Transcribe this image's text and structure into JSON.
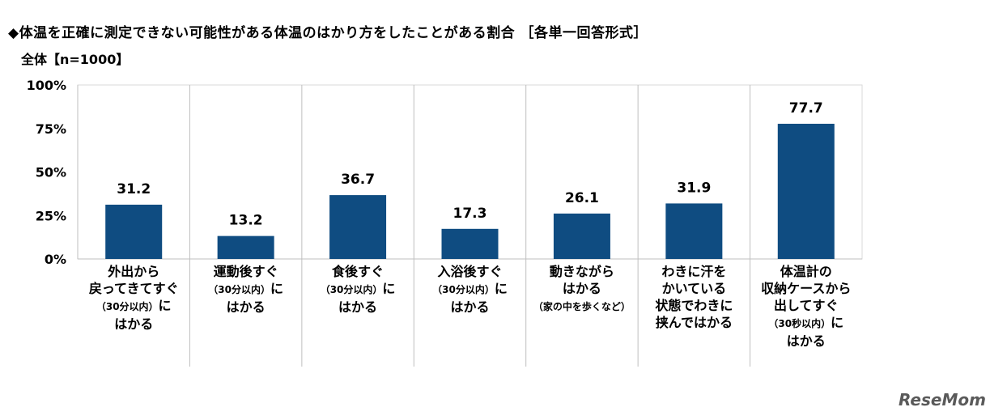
{
  "title": "◆体温を正確に測定できない可能性がある体温のはかり方をしたことがある割合 ［各単一回答形式］",
  "subtitle": "全体【n=1000】",
  "logo_text": "ReseMom",
  "chart_data": {
    "type": "bar",
    "title": "◆体温を正確に測定できない可能性がある体温のはかり方をしたことがある割合 ［各単一回答形式］",
    "subtitle": "全体【n=1000】",
    "ylim": [
      0,
      100
    ],
    "yticks": [
      "0%",
      "25%",
      "50%",
      "75%",
      "100%"
    ],
    "ytick_values": [
      0,
      25,
      50,
      75,
      100
    ],
    "bar_color": "#0f4c81",
    "grid": false,
    "categories": [
      {
        "lines": [
          {
            "text": "外出から"
          },
          {
            "text": "戻ってきてすぐ"
          },
          {
            "text": "（30分以内）",
            "small": true,
            "suffix": "に"
          },
          {
            "text": "はかる"
          }
        ]
      },
      {
        "lines": [
          {
            "text": "運動後すぐ"
          },
          {
            "text": "（30分以内）",
            "small": true,
            "suffix": "に"
          },
          {
            "text": "はかる"
          }
        ]
      },
      {
        "lines": [
          {
            "text": "食後すぐ"
          },
          {
            "text": "（30分以内）",
            "small": true,
            "suffix": "に"
          },
          {
            "text": "はかる"
          }
        ]
      },
      {
        "lines": [
          {
            "text": "入浴後すぐ"
          },
          {
            "text": "（30分以内）",
            "small": true,
            "suffix": "に"
          },
          {
            "text": "はかる"
          }
        ]
      },
      {
        "lines": [
          {
            "text": "動きながら"
          },
          {
            "text": "はかる"
          },
          {
            "text": "（家の中を歩くなど）",
            "small": true
          }
        ]
      },
      {
        "lines": [
          {
            "text": "わきに汗を"
          },
          {
            "text": "かいている"
          },
          {
            "text": "状態でわきに"
          },
          {
            "text": "挟んではかる"
          }
        ]
      },
      {
        "lines": [
          {
            "text": "体温計の"
          },
          {
            "text": "収納ケースから"
          },
          {
            "text": "出してすぐ"
          },
          {
            "text": "（30秒以内）",
            "small": true,
            "suffix": "に"
          },
          {
            "text": "はかる"
          }
        ]
      }
    ],
    "values": [
      31.2,
      13.2,
      36.7,
      17.3,
      26.1,
      31.9,
      77.7
    ],
    "value_labels": [
      "31.2",
      "13.2",
      "36.7",
      "17.3",
      "26.1",
      "31.9",
      "77.7"
    ]
  }
}
